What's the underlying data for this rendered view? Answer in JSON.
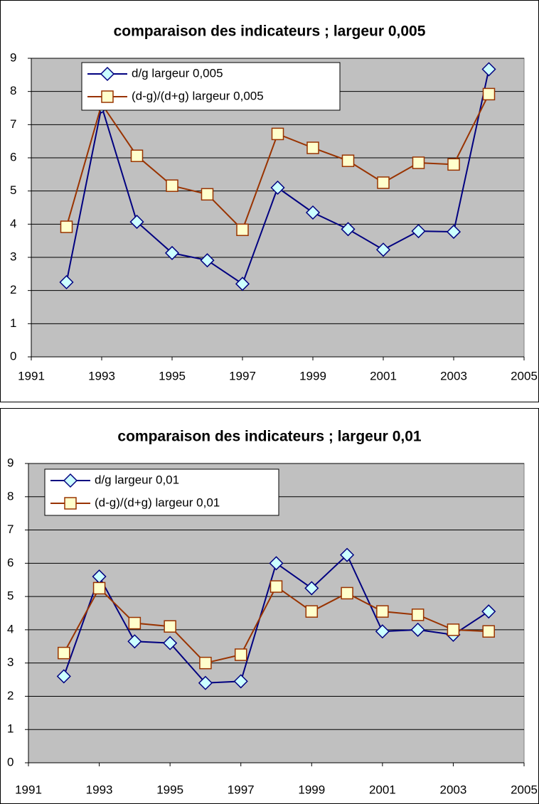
{
  "chart_data": [
    {
      "type": "line",
      "title": "comparaison des indicateurs ; largeur 0,005",
      "x": [
        1992,
        1993,
        1994,
        1995,
        1996,
        1997,
        1998,
        1999,
        2000,
        2001,
        2002,
        2003,
        2004
      ],
      "xlim": [
        1991,
        2005
      ],
      "xticks": [
        1991,
        1993,
        1995,
        1997,
        1999,
        2001,
        2003,
        2005
      ],
      "ylim": [
        0,
        9
      ],
      "yticks": [
        0,
        1,
        2,
        3,
        4,
        5,
        6,
        7,
        8,
        9
      ],
      "grid": true,
      "legend": "top-left",
      "series": [
        {
          "name": "d/g largeur 0,005",
          "color": "#000080",
          "marker": "diamond",
          "marker_fill": "#ccffff",
          "values": [
            2.25,
            7.55,
            4.07,
            3.13,
            2.91,
            2.2,
            5.1,
            4.35,
            3.85,
            3.23,
            3.79,
            3.77,
            8.67
          ]
        },
        {
          "name": "(d-g)/(d+g) largeur 0,005",
          "color": "#993300",
          "marker": "square",
          "marker_fill": "#ffffcc",
          "values": [
            3.92,
            7.62,
            6.06,
            5.16,
            4.9,
            3.83,
            6.72,
            6.3,
            5.91,
            5.25,
            5.85,
            5.8,
            7.92
          ]
        }
      ]
    },
    {
      "type": "line",
      "title": "comparaison des indicateurs ; largeur 0,01",
      "x": [
        1992,
        1993,
        1994,
        1995,
        1996,
        1997,
        1998,
        1999,
        2000,
        2001,
        2002,
        2003,
        2004
      ],
      "xlim": [
        1991,
        2005
      ],
      "xticks": [
        1991,
        1993,
        1995,
        1997,
        1999,
        2001,
        2003,
        2005
      ],
      "ylim": [
        0,
        9
      ],
      "yticks": [
        0,
        1,
        2,
        3,
        4,
        5,
        6,
        7,
        8,
        9
      ],
      "grid": true,
      "legend": "top-left",
      "series": [
        {
          "name": "d/g largeur 0,01",
          "color": "#000080",
          "marker": "diamond",
          "marker_fill": "#ccffff",
          "values": [
            2.6,
            5.6,
            3.65,
            3.6,
            2.4,
            2.45,
            6.0,
            5.25,
            6.25,
            3.95,
            4.0,
            3.85,
            4.55
          ]
        },
        {
          "name": "(d-g)/(d+g) largeur 0,01",
          "color": "#993300",
          "marker": "square",
          "marker_fill": "#ffffcc",
          "values": [
            3.3,
            5.25,
            4.2,
            4.1,
            3.0,
            3.25,
            5.3,
            4.55,
            5.1,
            4.55,
            4.45,
            4.0,
            3.95
          ]
        }
      ]
    }
  ]
}
